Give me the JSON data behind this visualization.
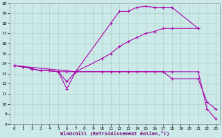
{
  "xlabel": "Windchill (Refroidissement éolien,°C)",
  "xlim": [
    -0.5,
    23.5
  ],
  "ylim": [
    8,
    20
  ],
  "yticks": [
    8,
    9,
    10,
    11,
    12,
    13,
    14,
    15,
    16,
    17,
    18,
    19,
    20
  ],
  "xticks": [
    0,
    1,
    2,
    3,
    4,
    5,
    6,
    7,
    8,
    9,
    10,
    11,
    12,
    13,
    14,
    15,
    16,
    17,
    18,
    19,
    20,
    21,
    22,
    23
  ],
  "bg_color": "#cbe9e9",
  "line_color": "#aa00aa",
  "series": [
    {
      "x": [
        0,
        1,
        2,
        3,
        4,
        5,
        6,
        7,
        11,
        12,
        13,
        14,
        15,
        16,
        17,
        18,
        21
      ],
      "y": [
        13.8,
        13.7,
        13.5,
        13.3,
        13.3,
        13.2,
        11.5,
        13.2,
        18.0,
        19.2,
        19.2,
        19.6,
        19.7,
        19.6,
        19.6,
        19.6,
        17.5
      ]
    },
    {
      "x": [
        0,
        1,
        2,
        3,
        4,
        5,
        6,
        7,
        10,
        11,
        12,
        13,
        14,
        15,
        16,
        17,
        18,
        21
      ],
      "y": [
        13.8,
        13.7,
        13.5,
        13.3,
        13.3,
        13.2,
        12.2,
        13.2,
        14.5,
        15.0,
        15.7,
        16.2,
        16.6,
        17.0,
        17.2,
        17.5,
        17.5,
        17.5
      ]
    },
    {
      "x": [
        0,
        1,
        2,
        3,
        4,
        5,
        6,
        7,
        10,
        11,
        12,
        13,
        14,
        15,
        16,
        17,
        18,
        21,
        22,
        23
      ],
      "y": [
        13.8,
        13.7,
        13.5,
        13.3,
        13.3,
        13.2,
        13.2,
        13.2,
        13.2,
        13.2,
        13.2,
        13.2,
        13.2,
        13.2,
        13.2,
        13.2,
        12.5,
        12.5,
        10.2,
        9.5
      ]
    },
    {
      "x": [
        0,
        7,
        18,
        21,
        22,
        23
      ],
      "y": [
        13.8,
        13.2,
        13.2,
        13.2,
        9.5,
        8.5
      ]
    }
  ]
}
